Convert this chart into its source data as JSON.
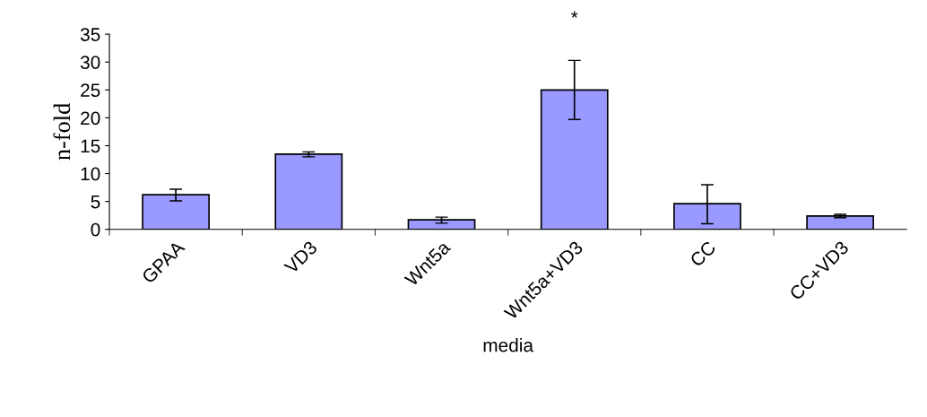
{
  "chart_data": {
    "type": "bar",
    "xlabel": "media",
    "ylabel": "n-fold",
    "categories": [
      "GPAA",
      "VD3",
      "Wnt5a",
      "Wnt5a+VD3",
      "CC",
      "CC+VD3"
    ],
    "values": [
      6.2,
      13.5,
      1.7,
      25.0,
      4.6,
      2.4
    ],
    "errors": [
      [
        5.1,
        7.2
      ],
      [
        13.0,
        13.9
      ],
      [
        1.1,
        2.2
      ],
      [
        19.7,
        30.3
      ],
      [
        1.0,
        8.0
      ],
      [
        2.1,
        2.7
      ]
    ],
    "color": "#9999ff",
    "ylim": [
      0,
      35
    ],
    "yticks": [
      0,
      5,
      10,
      15,
      20,
      25,
      30,
      35
    ],
    "annotations": [
      "*"
    ],
    "grid": false,
    "legend": false
  }
}
